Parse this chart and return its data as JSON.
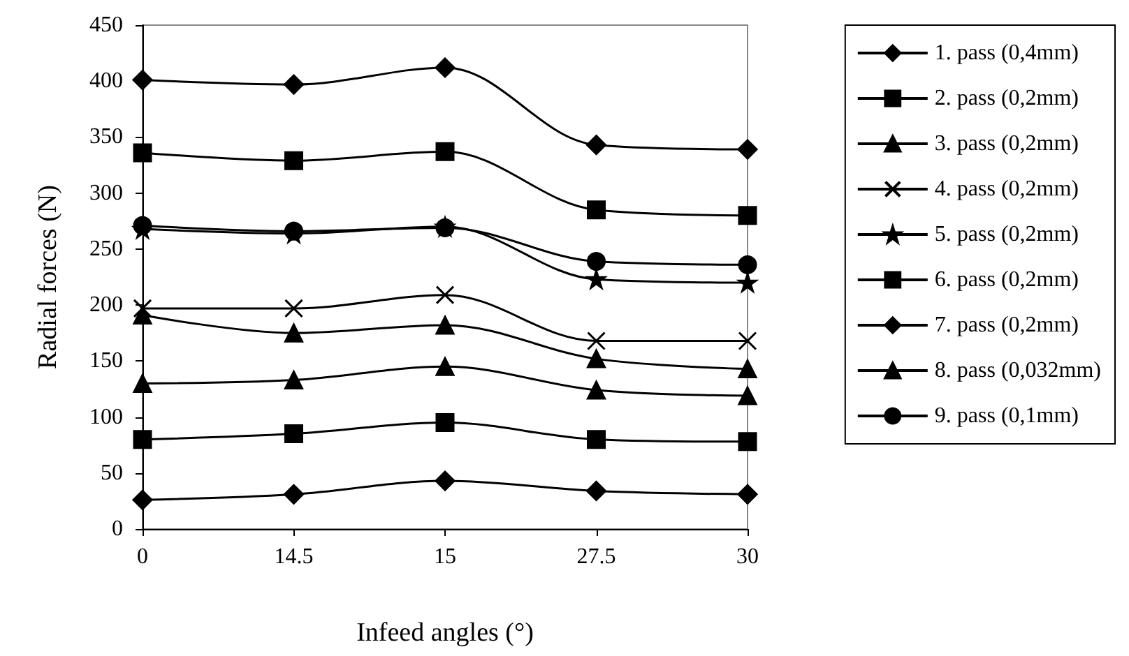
{
  "chart_data": {
    "type": "line",
    "xlabel": "Infeed angles (°)",
    "ylabel": "Radial forces (N)",
    "categories": [
      "0",
      "14.5",
      "15",
      "27.5",
      "30"
    ],
    "ylim": [
      0,
      450
    ],
    "yticks": [
      0,
      50,
      100,
      150,
      200,
      250,
      300,
      350,
      400,
      450
    ],
    "grid": false,
    "legend": "right",
    "line_style": "solid",
    "series": [
      {
        "name": "1. pass (0,4mm)",
        "color": "#000000",
        "marker": "diamond",
        "values": [
          26,
          31,
          43,
          34,
          31
        ]
      },
      {
        "name": "2. pass (0,2mm)",
        "color": "#000000",
        "marker": "square",
        "values": [
          80,
          85,
          95,
          80,
          78
        ]
      },
      {
        "name": "3. pass (0,2mm)",
        "color": "#000000",
        "marker": "triangle",
        "values": [
          130,
          133,
          145,
          124,
          119
        ]
      },
      {
        "name": "4. pass (0,2mm)",
        "color": "#000000",
        "marker": "cross",
        "values": [
          197,
          197,
          209,
          168,
          168
        ]
      },
      {
        "name": "5. pass (0,2mm)",
        "color": "#000000",
        "marker": "star",
        "values": [
          268,
          264,
          270,
          223,
          220
        ]
      },
      {
        "name": "6. pass (0,2mm)",
        "color": "#000000",
        "marker": "square",
        "values": [
          336,
          329,
          337,
          285,
          280
        ]
      },
      {
        "name": "7. pass (0,2mm)",
        "color": "#000000",
        "marker": "diamond",
        "values": [
          401,
          397,
          412,
          343,
          339
        ]
      },
      {
        "name": "8. pass (0,032mm)",
        "color": "#000000",
        "marker": "triangle",
        "values": [
          191,
          175,
          182,
          152,
          143
        ]
      },
      {
        "name": "9. pass (0,1mm)",
        "color": "#000000",
        "marker": "circle",
        "values": [
          271,
          266,
          269,
          239,
          236
        ]
      }
    ]
  }
}
